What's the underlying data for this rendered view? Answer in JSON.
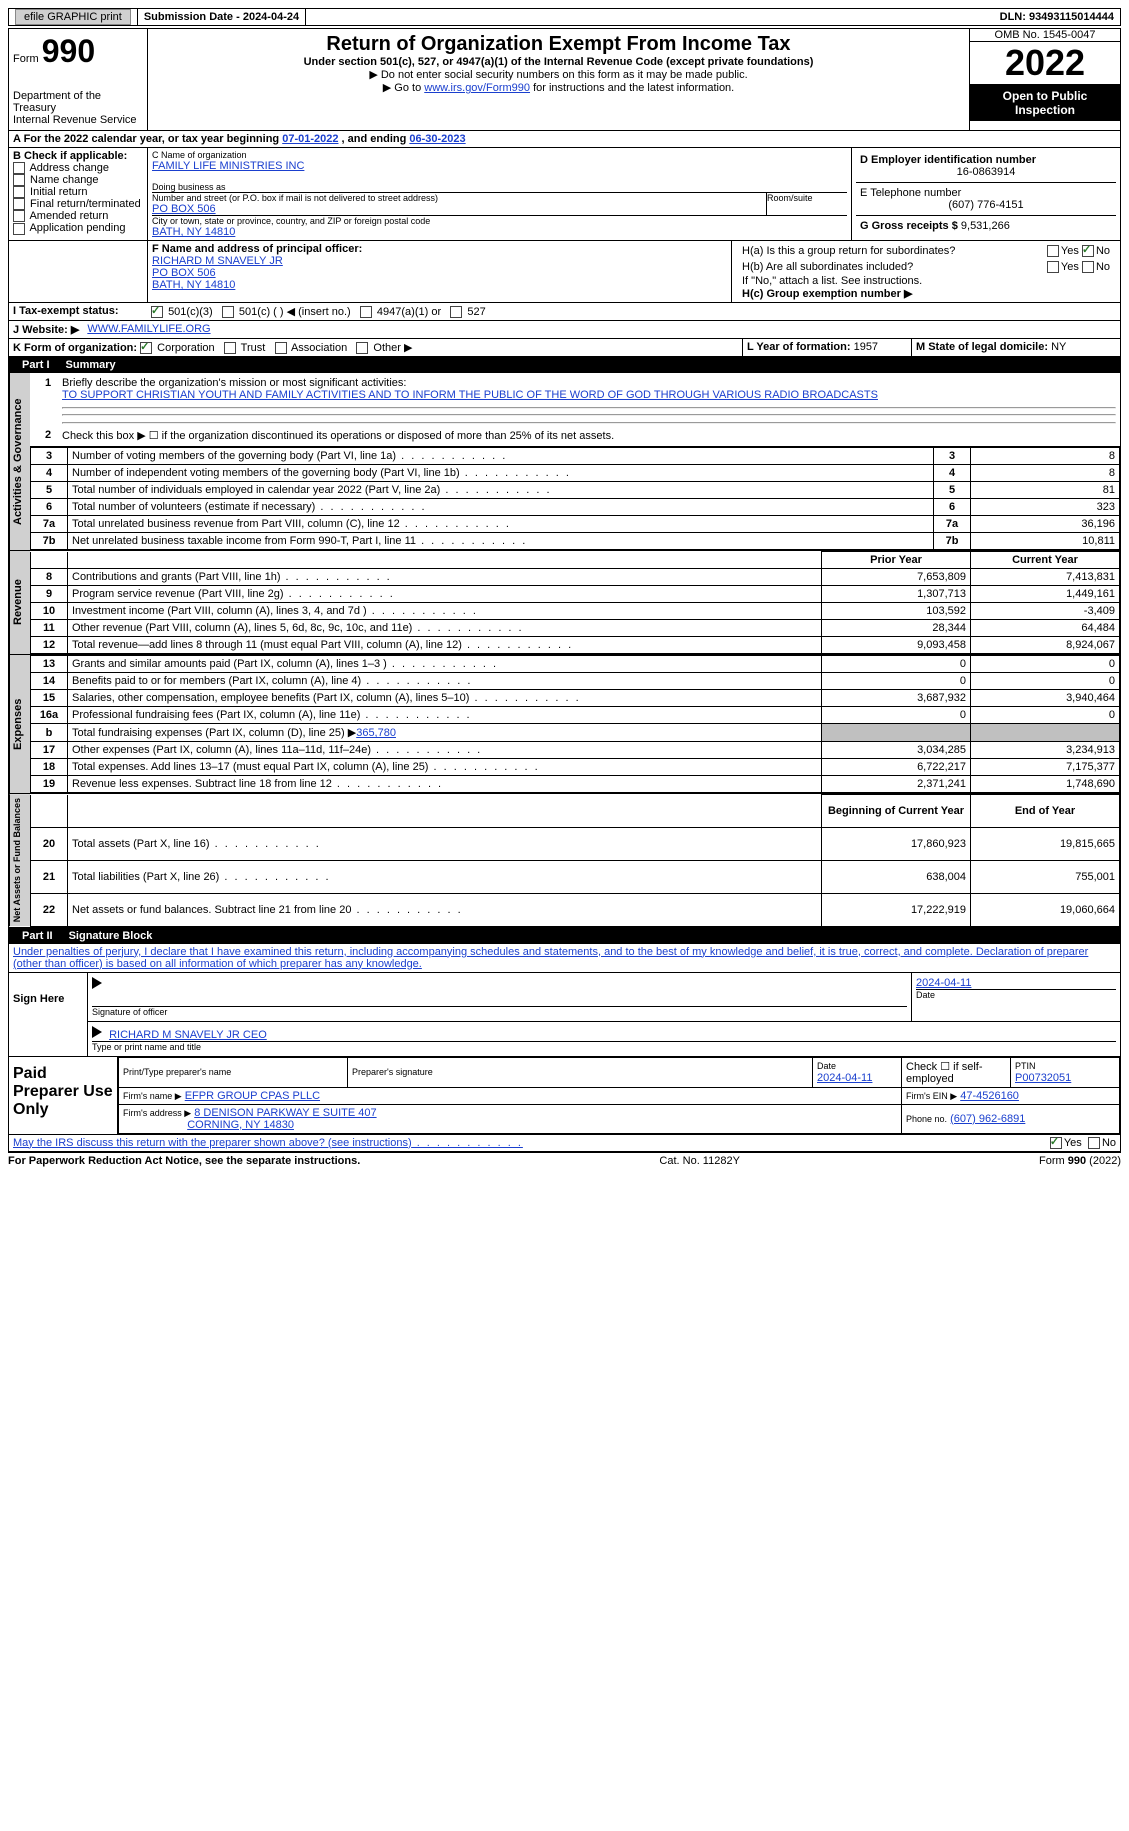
{
  "topbar": {
    "efile": "efile GRAPHIC print",
    "submission_label": "Submission Date - 2024-04-24",
    "dln_label": "DLN: 93493115014444"
  },
  "header": {
    "form_label": "Form",
    "form_num": "990",
    "dept": "Department of the Treasury",
    "irs": "Internal Revenue Service",
    "title": "Return of Organization Exempt From Income Tax",
    "subtitle": "Under section 501(c), 527, or 4947(a)(1) of the Internal Revenue Code (except private foundations)",
    "warn1": "▶ Do not enter social security numbers on this form as it may be made public.",
    "warn2_pre": "▶ Go to ",
    "warn2_link": "www.irs.gov/Form990",
    "warn2_post": " for instructions and the latest information.",
    "omb": "OMB No. 1545-0047",
    "year": "2022",
    "open": "Open to Public Inspection"
  },
  "periodA": {
    "text_pre": "A For the 2022 calendar year, or tax year beginning ",
    "begin": "07-01-2022",
    "text_mid": " , and ending ",
    "end": "06-30-2023"
  },
  "boxB": {
    "label": "B Check if applicable:",
    "opts": [
      "Address change",
      "Name change",
      "Initial return",
      "Final return/terminated",
      "Amended return",
      "Application pending"
    ]
  },
  "boxC": {
    "name_label": "C Name of organization",
    "name": "FAMILY LIFE MINISTRIES INC",
    "dba_label": "Doing business as",
    "street_label": "Number and street (or P.O. box if mail is not delivered to street address)",
    "room_label": "Room/suite",
    "street": "PO BOX 506",
    "city_label": "City or town, state or province, country, and ZIP or foreign postal code",
    "city": "BATH, NY  14810"
  },
  "boxD": {
    "label": "D Employer identification number",
    "val": "16-0863914"
  },
  "boxE": {
    "label": "E Telephone number",
    "val": "(607) 776-4151"
  },
  "boxG": {
    "label": "G Gross receipts $",
    "val": "9,531,266"
  },
  "boxF": {
    "label": "F  Name and address of principal officer:",
    "name": "RICHARD M SNAVELY JR",
    "street": "PO BOX 506",
    "city": "BATH, NY  14810"
  },
  "boxH": {
    "a_label": "H(a)  Is this a group return for subordinates?",
    "b_label": "H(b)  Are all subordinates included?",
    "note": "If \"No,\" attach a list. See instructions.",
    "c_label": "H(c)  Group exemption number ▶",
    "yes": "Yes",
    "no": "No"
  },
  "boxI": {
    "label": "I  Tax-exempt status:",
    "o1": "501(c)(3)",
    "o2": "501(c) (  ) ◀ (insert no.)",
    "o3": "4947(a)(1) or",
    "o4": "527"
  },
  "boxJ": {
    "label": "J  Website: ▶",
    "val": "WWW.FAMILYLIFE.ORG"
  },
  "boxK": {
    "label": "K Form of organization:",
    "opts": [
      "Corporation",
      "Trust",
      "Association",
      "Other ▶"
    ]
  },
  "boxL": {
    "label": "L Year of formation:",
    "val": "1957"
  },
  "boxM": {
    "label": "M State of legal domicile:",
    "val": "NY"
  },
  "part1": {
    "num": "Part I",
    "title": "Summary"
  },
  "mission": {
    "label": "Briefly describe the organization's mission or most significant activities:",
    "text": "TO SUPPORT CHRISTIAN YOUTH AND FAMILY ACTIVITIES AND TO INFORM THE PUBLIC OF THE WORD OF GOD THROUGH VARIOUS RADIO BROADCASTS"
  },
  "line2": "Check this box ▶ ☐  if the organization discontinued its operations or disposed of more than 25% of its net assets.",
  "summary_small": [
    {
      "n": "3",
      "t": "Number of voting members of the governing body (Part VI, line 1a)",
      "v": "8"
    },
    {
      "n": "4",
      "t": "Number of independent voting members of the governing body (Part VI, line 1b)",
      "v": "8"
    },
    {
      "n": "5",
      "t": "Total number of individuals employed in calendar year 2022 (Part V, line 2a)",
      "v": "81"
    },
    {
      "n": "6",
      "t": "Total number of volunteers (estimate if necessary)",
      "v": "323"
    },
    {
      "n": "7a",
      "t": "Total unrelated business revenue from Part VIII, column (C), line 12",
      "v": "36,196"
    },
    {
      "n": "7b",
      "t": "Net unrelated business taxable income from Form 990-T, Part I, line 11",
      "v": "10,811"
    }
  ],
  "col_headers": {
    "prior": "Prior Year",
    "current": "Current Year",
    "boc": "Beginning of Current Year",
    "eoy": "End of Year"
  },
  "revenue": [
    {
      "n": "8",
      "t": "Contributions and grants (Part VIII, line 1h)",
      "p": "7,653,809",
      "c": "7,413,831"
    },
    {
      "n": "9",
      "t": "Program service revenue (Part VIII, line 2g)",
      "p": "1,307,713",
      "c": "1,449,161"
    },
    {
      "n": "10",
      "t": "Investment income (Part VIII, column (A), lines 3, 4, and 7d )",
      "p": "103,592",
      "c": "-3,409"
    },
    {
      "n": "11",
      "t": "Other revenue (Part VIII, column (A), lines 5, 6d, 8c, 9c, 10c, and 11e)",
      "p": "28,344",
      "c": "64,484"
    },
    {
      "n": "12",
      "t": "Total revenue—add lines 8 through 11 (must equal Part VIII, column (A), line 12)",
      "p": "9,093,458",
      "c": "8,924,067"
    }
  ],
  "expenses": [
    {
      "n": "13",
      "t": "Grants and similar amounts paid (Part IX, column (A), lines 1–3 )",
      "p": "0",
      "c": "0"
    },
    {
      "n": "14",
      "t": "Benefits paid to or for members (Part IX, column (A), line 4)",
      "p": "0",
      "c": "0"
    },
    {
      "n": "15",
      "t": "Salaries, other compensation, employee benefits (Part IX, column (A), lines 5–10)",
      "p": "3,687,932",
      "c": "3,940,464"
    },
    {
      "n": "16a",
      "t": "Professional fundraising fees (Part IX, column (A), line 11e)",
      "p": "0",
      "c": "0"
    }
  ],
  "line_b": {
    "n": "b",
    "t": "Total fundraising expenses (Part IX, column (D), line 25) ▶",
    "v": "365,780"
  },
  "expenses2": [
    {
      "n": "17",
      "t": "Other expenses (Part IX, column (A), lines 11a–11d, 11f–24e)",
      "p": "3,034,285",
      "c": "3,234,913"
    },
    {
      "n": "18",
      "t": "Total expenses. Add lines 13–17 (must equal Part IX, column (A), line 25)",
      "p": "6,722,217",
      "c": "7,175,377"
    },
    {
      "n": "19",
      "t": "Revenue less expenses. Subtract line 18 from line 12",
      "p": "2,371,241",
      "c": "1,748,690"
    }
  ],
  "netassets": [
    {
      "n": "20",
      "t": "Total assets (Part X, line 16)",
      "p": "17,860,923",
      "c": "19,815,665"
    },
    {
      "n": "21",
      "t": "Total liabilities (Part X, line 26)",
      "p": "638,004",
      "c": "755,001"
    },
    {
      "n": "22",
      "t": "Net assets or fund balances. Subtract line 21 from line 20",
      "p": "17,222,919",
      "c": "19,060,664"
    }
  ],
  "vlabels": {
    "ag": "Activities & Governance",
    "rev": "Revenue",
    "exp": "Expenses",
    "na": "Net Assets or Fund Balances"
  },
  "part2": {
    "num": "Part II",
    "title": "Signature Block"
  },
  "perjury": "Under penalties of perjury, I declare that I have examined this return, including accompanying schedules and statements, and to the best of my knowledge and belief, it is true, correct, and complete. Declaration of preparer (other than officer) is based on all information of which preparer has any knowledge.",
  "sign": {
    "here": "Sign Here",
    "sig_label": "Signature of officer",
    "date": "2024-04-11",
    "name": "RICHARD M SNAVELY JR  CEO",
    "type_label": "Type or print name and title"
  },
  "paid": {
    "label": "Paid Preparer Use Only",
    "pname_label": "Print/Type preparer's name",
    "psig_label": "Preparer's signature",
    "date_label": "Date",
    "date": "2024-04-11",
    "check_label": "Check ☐ if self-employed",
    "ptin_label": "PTIN",
    "ptin": "P00732051",
    "firm_label": "Firm's name    ▶",
    "firm": "EFPR GROUP CPAS PLLC",
    "ein_label": "Firm's EIN ▶",
    "ein": "47-4526160",
    "addr_label": "Firm's address ▶",
    "addr1": "8 DENISON PARKWAY E SUITE 407",
    "addr2": "CORNING, NY  14830",
    "phone_label": "Phone no.",
    "phone": "(607) 962-6891"
  },
  "discuss": {
    "text": "May the IRS discuss this return with the preparer shown above? (see instructions)",
    "yes": "Yes",
    "no": "No"
  },
  "footer": {
    "left": "For Paperwork Reduction Act Notice, see the separate instructions.",
    "mid": "Cat. No. 11282Y",
    "right": "Form 990 (2022)"
  }
}
